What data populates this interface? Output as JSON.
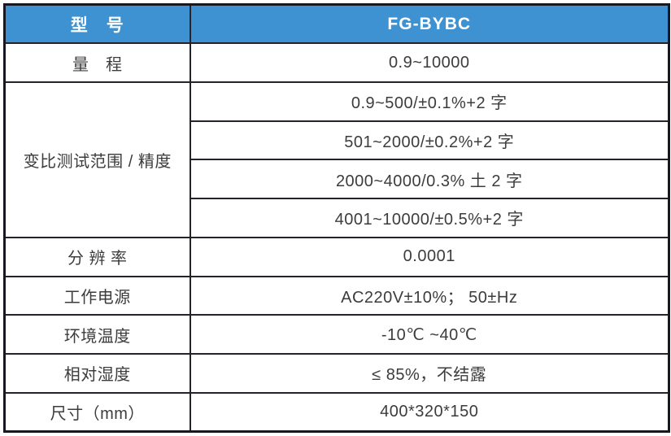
{
  "colors": {
    "header_bg": "#3E92D1",
    "header_text": "#FFFFFF",
    "outer_border": "#181820",
    "grid_line": "#23232B",
    "cell_text": "#3C3C3C"
  },
  "table": {
    "header": {
      "label": "型　号",
      "value": "FG-BYBC"
    },
    "range": {
      "label": "量　程",
      "value": "0.9~10000"
    },
    "ratio": {
      "label": "变比测试范围 / 精度",
      "values": [
        "0.9~500/±0.1%+2 字",
        "501~2000/±0.2%+2 字",
        "2000~4000/0.3% 土 2 字",
        "4001~10000/±0.5%+2 字"
      ]
    },
    "rows": [
      {
        "label": "分 辨 率",
        "value": "0.0001"
      },
      {
        "label": "工作电源",
        "value": "AC220V±10%； 50±Hz"
      },
      {
        "label": "环境温度",
        "value": "-10℃ ~40℃"
      },
      {
        "label": "相对湿度",
        "value": "≤ 85%，不结露"
      },
      {
        "label": "尺寸（mm）",
        "value": "400*320*150"
      }
    ]
  }
}
